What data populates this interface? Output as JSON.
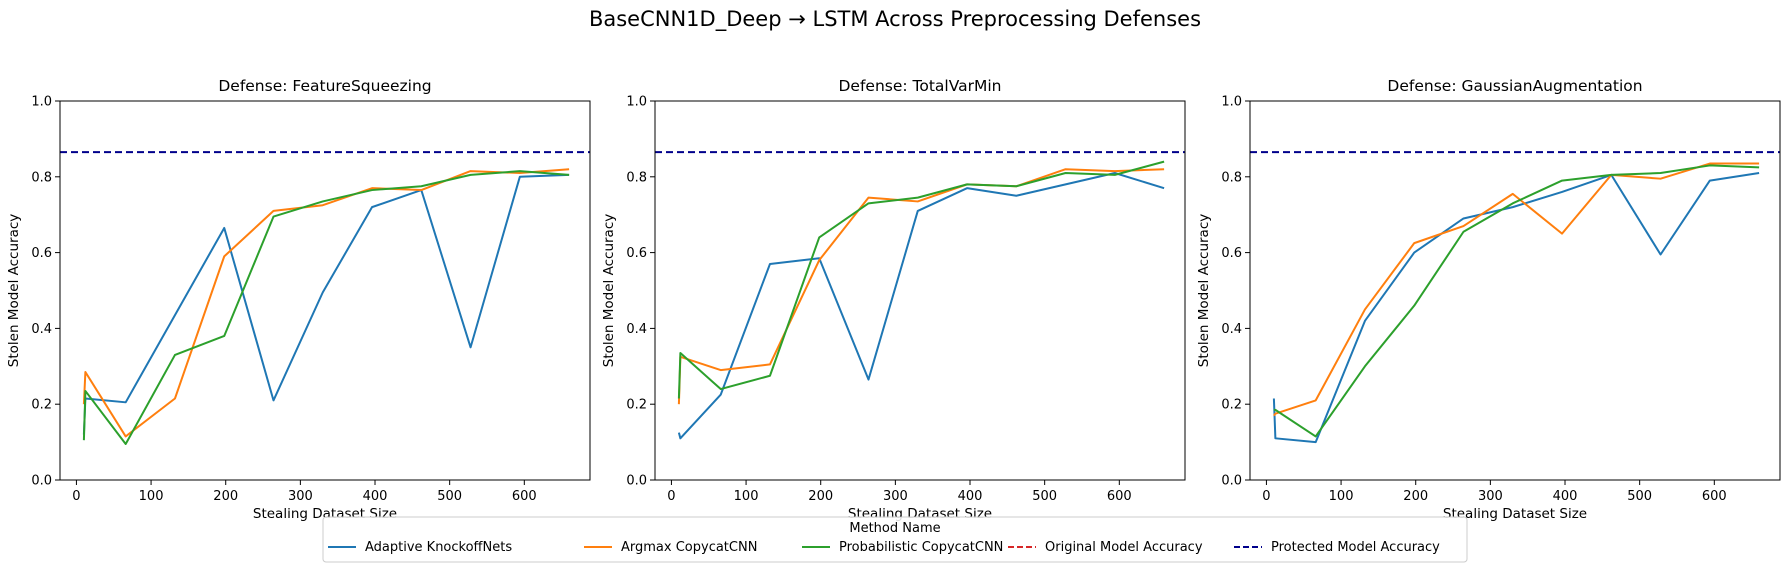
{
  "suptitle": "BaseCNN1D_Deep → LSTM Across Preprocessing Defenses",
  "legend": {
    "title": "Method Name",
    "placement": "bottom-center",
    "entries": [
      {
        "label": "Adaptive KnockoffNets",
        "color": "#1f77b4",
        "dash": "solid"
      },
      {
        "label": "Argmax CopycatCNN",
        "color": "#ff7f0e",
        "dash": "solid"
      },
      {
        "label": "Probabilistic CopycatCNN",
        "color": "#2ca02c",
        "dash": "solid"
      },
      {
        "label": "Original Model Accuracy",
        "color": "#d62728",
        "dash": "dashed"
      },
      {
        "label": "Protected Model Accuracy",
        "color": "#00008b",
        "dash": "dashed"
      }
    ]
  },
  "chart_data": [
    {
      "type": "line",
      "title": "Defense: FeatureSqueezing",
      "xlabel": "Stealing Dataset Size",
      "ylabel": "Stolen Model Accuracy",
      "xlim": [
        -22,
        688
      ],
      "ylim": [
        0,
        1.0
      ],
      "xticks": [
        0,
        100,
        200,
        300,
        400,
        500,
        600
      ],
      "yticks": [
        0.0,
        0.2,
        0.4,
        0.6,
        0.8,
        1.0
      ],
      "grid": false,
      "reference_lines": [
        {
          "name": "Protected Model Accuracy",
          "y": 0.865,
          "color": "#00008b"
        }
      ],
      "series": [
        {
          "name": "Adaptive KnockoffNets",
          "color": "#1f77b4",
          "x": [
            10,
            12,
            66,
            132,
            198,
            264,
            330,
            396,
            462,
            528,
            594,
            660
          ],
          "y": [
            0.12,
            0.215,
            0.205,
            0.435,
            0.665,
            0.21,
            0.495,
            0.72,
            0.765,
            0.35,
            0.8,
            0.805
          ]
        },
        {
          "name": "Argmax CopycatCNN",
          "color": "#ff7f0e",
          "x": [
            10,
            12,
            66,
            132,
            198,
            264,
            330,
            396,
            462,
            528,
            594,
            660
          ],
          "y": [
            0.2,
            0.285,
            0.115,
            0.215,
            0.59,
            0.71,
            0.725,
            0.77,
            0.765,
            0.815,
            0.81,
            0.82
          ]
        },
        {
          "name": "Probabilistic CopycatCNN",
          "color": "#2ca02c",
          "x": [
            10,
            12,
            66,
            132,
            198,
            264,
            330,
            396,
            462,
            528,
            594,
            660
          ],
          "y": [
            0.105,
            0.235,
            0.095,
            0.33,
            0.38,
            0.695,
            0.735,
            0.765,
            0.775,
            0.805,
            0.815,
            0.805
          ]
        }
      ]
    },
    {
      "type": "line",
      "title": "Defense: TotalVarMin",
      "xlabel": "Stealing Dataset Size",
      "ylabel": "Stolen Model Accuracy",
      "xlim": [
        -22,
        688
      ],
      "ylim": [
        0,
        1.0
      ],
      "xticks": [
        0,
        100,
        200,
        300,
        400,
        500,
        600
      ],
      "yticks": [
        0.0,
        0.2,
        0.4,
        0.6,
        0.8,
        1.0
      ],
      "grid": false,
      "reference_lines": [
        {
          "name": "Protected Model Accuracy",
          "y": 0.865,
          "color": "#00008b"
        }
      ],
      "series": [
        {
          "name": "Adaptive KnockoffNets",
          "color": "#1f77b4",
          "x": [
            10,
            12,
            66,
            132,
            198,
            264,
            330,
            396,
            462,
            528,
            594,
            660
          ],
          "y": [
            0.125,
            0.11,
            0.225,
            0.57,
            0.585,
            0.265,
            0.71,
            0.77,
            0.75,
            0.78,
            0.81,
            0.77
          ]
        },
        {
          "name": "Argmax CopycatCNN",
          "color": "#ff7f0e",
          "x": [
            10,
            12,
            66,
            132,
            198,
            264,
            330,
            396,
            462,
            528,
            594,
            660
          ],
          "y": [
            0.2,
            0.325,
            0.29,
            0.305,
            0.58,
            0.745,
            0.735,
            0.78,
            0.775,
            0.82,
            0.815,
            0.82
          ]
        },
        {
          "name": "Probabilistic CopycatCNN",
          "color": "#2ca02c",
          "x": [
            10,
            12,
            66,
            132,
            198,
            264,
            330,
            396,
            462,
            528,
            594,
            660
          ],
          "y": [
            0.215,
            0.335,
            0.24,
            0.275,
            0.64,
            0.73,
            0.745,
            0.78,
            0.775,
            0.81,
            0.805,
            0.84
          ]
        }
      ]
    },
    {
      "type": "line",
      "title": "Defense: GaussianAugmentation",
      "xlabel": "Stealing Dataset Size",
      "ylabel": "Stolen Model Accuracy",
      "xlim": [
        -22,
        688
      ],
      "ylim": [
        0,
        1.0
      ],
      "xticks": [
        0,
        100,
        200,
        300,
        400,
        500,
        600
      ],
      "yticks": [
        0.0,
        0.2,
        0.4,
        0.6,
        0.8,
        1.0
      ],
      "grid": false,
      "reference_lines": [
        {
          "name": "Protected Model Accuracy",
          "y": 0.865,
          "color": "#00008b"
        }
      ],
      "series": [
        {
          "name": "Adaptive KnockoffNets",
          "color": "#1f77b4",
          "x": [
            10,
            12,
            66,
            132,
            198,
            264,
            330,
            396,
            462,
            528,
            594,
            660
          ],
          "y": [
            0.215,
            0.11,
            0.1,
            0.42,
            0.6,
            0.69,
            0.72,
            0.76,
            0.805,
            0.595,
            0.79,
            0.81
          ]
        },
        {
          "name": "Argmax CopycatCNN",
          "color": "#ff7f0e",
          "x": [
            10,
            12,
            66,
            132,
            198,
            264,
            330,
            396,
            462,
            528,
            594,
            660
          ],
          "y": [
            0.17,
            0.175,
            0.21,
            0.45,
            0.625,
            0.67,
            0.755,
            0.65,
            0.805,
            0.795,
            0.835,
            0.835
          ]
        },
        {
          "name": "Probabilistic CopycatCNN",
          "color": "#2ca02c",
          "x": [
            10,
            12,
            66,
            132,
            198,
            264,
            330,
            396,
            462,
            528,
            594,
            660
          ],
          "y": [
            0.185,
            0.185,
            0.115,
            0.3,
            0.46,
            0.655,
            0.73,
            0.79,
            0.805,
            0.81,
            0.83,
            0.825
          ]
        }
      ]
    }
  ]
}
